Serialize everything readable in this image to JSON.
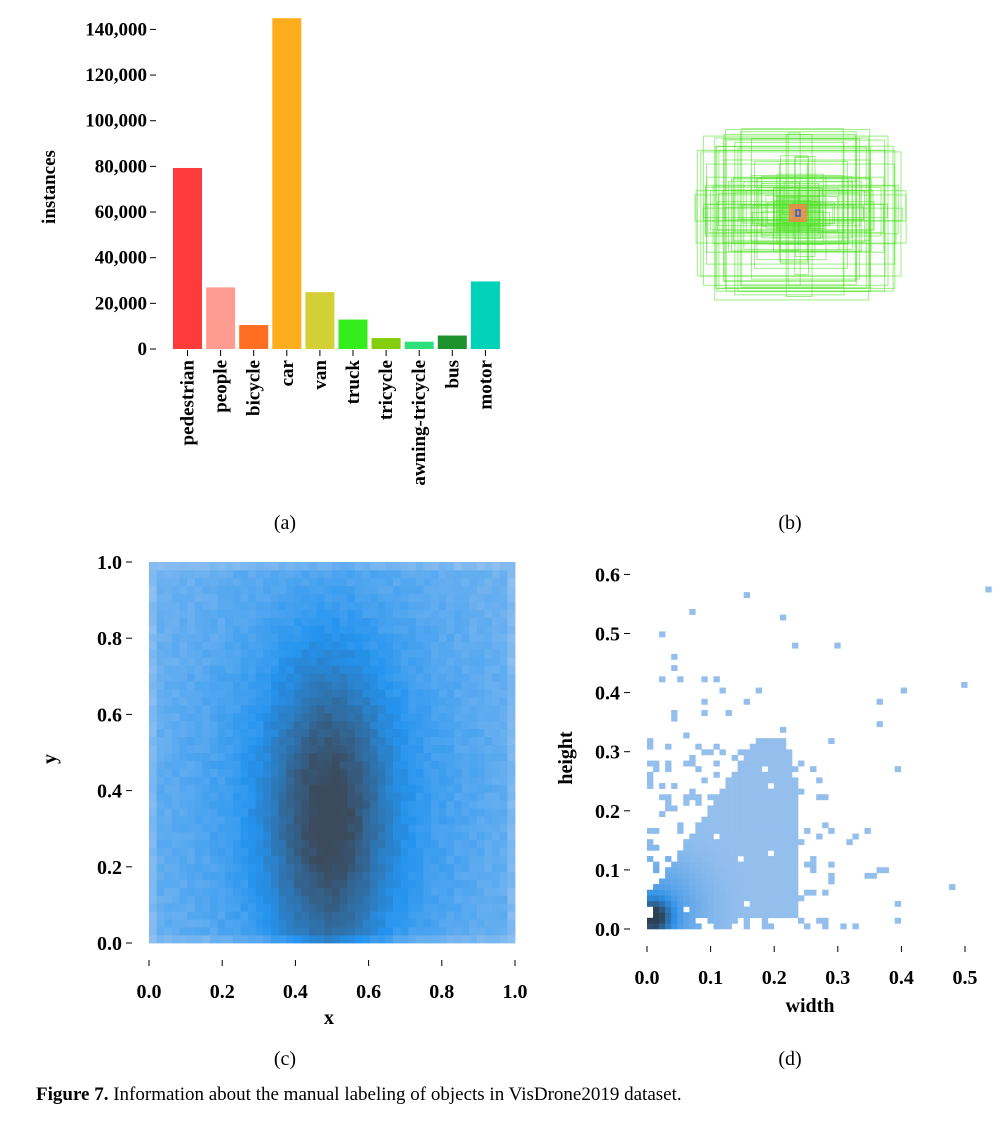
{
  "figure": {
    "caption_label": "Figure 7.",
    "caption_text": "Information about the manual labeling of objects in VisDrone2019 dataset.",
    "sublabels": {
      "a": "(a)",
      "b": "(b)",
      "c": "(c)",
      "d": "(d)"
    }
  },
  "chart_data": [
    {
      "id": "a",
      "type": "bar",
      "title": "",
      "xlabel": "",
      "ylabel": "instances",
      "ylim": [
        0,
        145000
      ],
      "yticks": [
        0,
        20000,
        40000,
        60000,
        80000,
        100000,
        120000,
        140000
      ],
      "ytick_labels": [
        "0",
        "20,000",
        "40,000",
        "60,000",
        "80,000",
        "100,000",
        "120,000",
        "140,000"
      ],
      "categories": [
        "pedestrian",
        "people",
        "bicycle",
        "car",
        "van",
        "truck",
        "tricycle",
        "awning-tricycle",
        "bus",
        "motor"
      ],
      "values": [
        79300,
        27000,
        10500,
        144900,
        24900,
        12900,
        4800,
        3200,
        5900,
        29600
      ],
      "colors": [
        "#fe3b3b",
        "#ff9c92",
        "#ff6e21",
        "#ffad1c",
        "#d3d035",
        "#33ee1c",
        "#85ce0e",
        "#2ee07a",
        "#1d922d",
        "#00d2ba"
      ]
    },
    {
      "id": "b",
      "type": "diagram",
      "title": "",
      "description_only": true,
      "box_color": "#4be020",
      "center_box_color": "#ff7a4a",
      "center_mark_color": "#2f5bd8"
    },
    {
      "id": "c",
      "type": "heatmap",
      "xlabel": "x",
      "ylabel": "y",
      "xlim": [
        0.0,
        1.0
      ],
      "ylim": [
        0.0,
        1.0
      ],
      "xticks": [
        0.0,
        0.2,
        0.4,
        0.6,
        0.8,
        1.0
      ],
      "xtick_labels": [
        "0.0",
        "0.2",
        "0.4",
        "0.6",
        "0.8",
        "1.0"
      ],
      "yticks": [
        0.0,
        0.2,
        0.4,
        0.6,
        0.8,
        1.0
      ],
      "ytick_labels": [
        "0.0",
        "0.2",
        "0.4",
        "0.6",
        "0.8",
        "1.0"
      ],
      "density_peak": {
        "x": 0.49,
        "y": 0.32
      },
      "colors": {
        "low": "#a6c9f1",
        "mid": "#2594ef",
        "high": "#3b4a5c"
      }
    },
    {
      "id": "d",
      "type": "heatmap",
      "xlabel": "width",
      "ylabel": "height",
      "xlim": [
        0.0,
        0.55
      ],
      "ylim": [
        0.0,
        0.65
      ],
      "xticks": [
        0.0,
        0.1,
        0.2,
        0.3,
        0.4,
        0.5
      ],
      "xtick_labels": [
        "0.0",
        "0.1",
        "0.2",
        "0.3",
        "0.4",
        "0.5"
      ],
      "yticks": [
        0.0,
        0.1,
        0.2,
        0.3,
        0.4,
        0.5,
        0.6
      ],
      "ytick_labels": [
        "0.0",
        "0.1",
        "0.2",
        "0.3",
        "0.4",
        "0.5",
        "0.6"
      ],
      "density_peak": {
        "x": 0.01,
        "y": 0.02
      },
      "colors": {
        "low": "#aecbef",
        "mid": "#2d8fe6",
        "high": "#2e3f52"
      }
    }
  ]
}
